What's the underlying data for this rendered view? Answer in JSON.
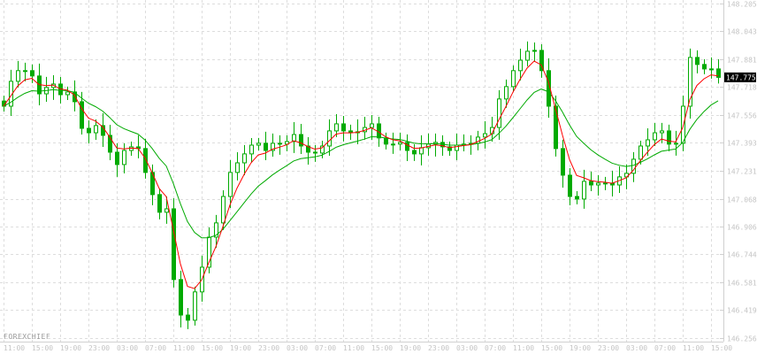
{
  "chart_data": {
    "type": "candlestick",
    "brand": "FOREXCHIEF",
    "current_price": "147.775",
    "y_ticks": [
      "148.205",
      "148.043",
      "147.881",
      "147.718",
      "147.556",
      "147.393",
      "147.231",
      "147.068",
      "146.906",
      "146.744",
      "146.581",
      "146.419",
      "146.256"
    ],
    "ylim": [
      146.256,
      148.205
    ],
    "x_ticks": [
      "11:00",
      "15:00",
      "19:00",
      "23:00",
      "03:00",
      "07:00",
      "11:00",
      "15:00",
      "19:00",
      "23:00",
      "03:00",
      "07:00",
      "11:00",
      "15:00",
      "19:00",
      "23:00",
      "03:00",
      "07:00",
      "11:00",
      "15:00",
      "19:00",
      "23:00",
      "03:00",
      "07:00",
      "11:00",
      "15:00"
    ],
    "grid": true,
    "colors": {
      "candle": "#00aa00",
      "fast_ma": "#ff0000",
      "slow_ma": "#00aa00",
      "grid": "#dddddd",
      "price_label_bg": "#000000"
    },
    "close": [
      147.607,
      147.752,
      147.814,
      147.814,
      147.783,
      147.679,
      147.716,
      147.736,
      147.674,
      147.69,
      147.633,
      147.478,
      147.452,
      147.494,
      147.437,
      147.339,
      147.267,
      147.349,
      147.37,
      147.36,
      147.221,
      147.092,
      146.989,
      147.009,
      146.597,
      146.39,
      146.36,
      146.525,
      146.669,
      146.844,
      146.927,
      147.081,
      147.221,
      147.277,
      147.329,
      147.38,
      147.391,
      147.349,
      147.391,
      147.386,
      147.401,
      147.442,
      147.375,
      147.339,
      147.334,
      147.375,
      147.463,
      147.504,
      147.463,
      147.452,
      147.458,
      147.483,
      147.504,
      147.422,
      147.386,
      147.386,
      147.396,
      147.349,
      147.329,
      147.365,
      147.386,
      147.396,
      147.37,
      147.349,
      147.38,
      147.386,
      147.391,
      147.427,
      147.447,
      147.483,
      147.649,
      147.721,
      147.814,
      147.875,
      147.927,
      147.932,
      147.814,
      147.607,
      147.36,
      147.205,
      147.081,
      147.066,
      147.169,
      147.148,
      147.159,
      147.159,
      147.148,
      147.195,
      147.216,
      147.298,
      147.375,
      147.411,
      147.452,
      147.463,
      147.386,
      147.391,
      147.607,
      147.891,
      147.85,
      147.824,
      147.824,
      147.775
    ]
  }
}
